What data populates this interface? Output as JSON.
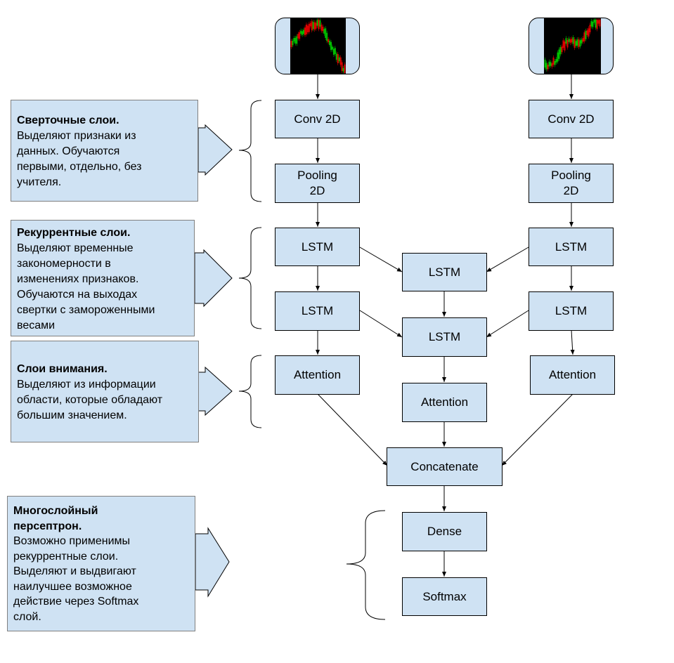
{
  "nodes": {
    "conv_left": "Conv 2D",
    "conv_right": "Conv 2D",
    "pool_left_1": "Pooling",
    "pool_left_2": "2D",
    "pool_right_1": "Pooling",
    "pool_right_2": "2D",
    "lstm_left_1": "LSTM",
    "lstm_left_2": "LSTM",
    "lstm_mid_1": "LSTM",
    "lstm_mid_2": "LSTM",
    "lstm_right_1": "LSTM",
    "lstm_right_2": "LSTM",
    "att_left": "Attention",
    "att_mid": "Attention",
    "att_right": "Attention",
    "concat": "Concatenate",
    "dense": "Dense",
    "softmax": "Softmax"
  },
  "descriptions": {
    "conv": {
      "title": "Сверточные слои.",
      "lines": [
        "Выделяют признаки из",
        "данных. Обучаются",
        "первыми, отдельно, без",
        "учителя."
      ]
    },
    "recurrent": {
      "title": "Рекуррентные слои.",
      "lines": [
        "Выделяют временные",
        "закономерности в",
        "изменениях признаков.",
        "Обучаются на выходах",
        "свертки с замороженными",
        "весами"
      ]
    },
    "attention": {
      "title": "Слои внимания.",
      "lines": [
        "Выделяют из информации",
        "области, которые обладают",
        "большим значением."
      ]
    },
    "mlp": {
      "title_lines": [
        "Многослойный",
        "персептрон."
      ],
      "lines": [
        "Возможно применимы",
        "рекуррентные слои.",
        "Выделяют и выдвигают",
        "наилучшее возможное",
        "действие через Softmax",
        "слой."
      ]
    }
  },
  "colors": {
    "box_fill": "#cfe2f3",
    "candle_up": "#00c000",
    "candle_down": "#e00000",
    "chart_bg": "#000000"
  }
}
